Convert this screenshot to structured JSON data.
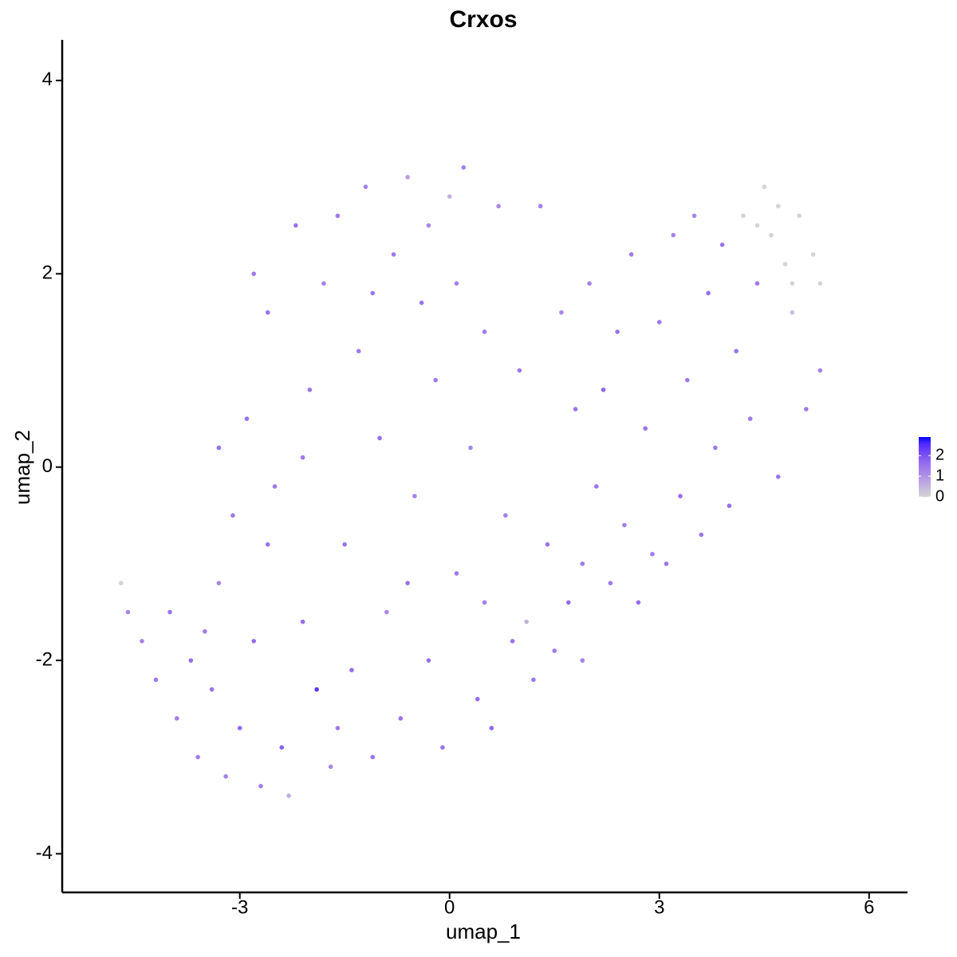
{
  "chart_data": {
    "type": "scatter",
    "title": "Crxos",
    "x_label": "umap_1",
    "y_label": "umap_2",
    "xlim": [
      -5.54,
      6.55
    ],
    "ylim": [
      -4.4,
      4.42
    ],
    "xticks": [
      -3,
      0,
      3,
      6
    ],
    "yticks": [
      -4,
      -2,
      0,
      2,
      4
    ],
    "color_scale": {
      "low": "#d3d3d3",
      "high": "#0000ff",
      "lim": [
        0,
        2.9
      ],
      "ticks": [
        0,
        1,
        2
      ]
    },
    "x": [
      -4.7,
      -4.6,
      -4.4,
      -4.2,
      -4.0,
      -3.9,
      -3.7,
      -3.6,
      -3.4,
      -3.3,
      -3.2,
      -3.1,
      -3.0,
      -2.9,
      -2.8,
      -2.7,
      -2.6,
      -2.5,
      -2.4,
      -2.3,
      -2.2,
      -2.1,
      -2.0,
      -1.9,
      -1.8,
      -1.7,
      -1.6,
      -1.5,
      -1.4,
      -1.3,
      -1.2,
      -1.1,
      -1.0,
      -0.9,
      -0.8,
      -0.7,
      -0.6,
      -0.5,
      -0.4,
      -0.3,
      -0.2,
      -0.1,
      0.0,
      0.1,
      0.2,
      0.3,
      0.4,
      0.5,
      0.6,
      0.7,
      0.8,
      0.9,
      1.0,
      1.1,
      1.2,
      1.3,
      1.4,
      1.5,
      1.6,
      1.7,
      1.8,
      1.9,
      2.0,
      2.1,
      2.2,
      2.3,
      2.4,
      2.5,
      2.6,
      2.7,
      2.8,
      3.0,
      3.1,
      3.2,
      3.3,
      3.4,
      3.5,
      3.6,
      3.7,
      3.8,
      3.9,
      4.0,
      4.1,
      4.2,
      4.3,
      4.4,
      4.5,
      4.6,
      4.7,
      4.8,
      4.9,
      5.0,
      5.1,
      5.2,
      5.3,
      5.3,
      4.9,
      4.7,
      4.4,
      -3.5,
      -2.6,
      -1.6,
      -0.6,
      0.5,
      -2.1,
      -1.1,
      0.1,
      -3.3,
      -2.8,
      -0.3,
      1.9,
      2.9
    ],
    "y": [
      -1.2,
      -1.5,
      -1.8,
      -2.2,
      -1.5,
      -2.6,
      -2.0,
      -3.0,
      -2.3,
      -1.2,
      -3.2,
      -0.5,
      -2.7,
      0.5,
      -1.8,
      -3.3,
      1.6,
      -0.2,
      -2.9,
      -3.4,
      2.5,
      -1.6,
      0.8,
      -2.3,
      1.9,
      -3.1,
      2.6,
      -0.8,
      -2.1,
      1.2,
      2.9,
      -3.0,
      0.3,
      -1.5,
      2.2,
      -2.6,
      3.0,
      -0.3,
      1.7,
      -2.0,
      0.9,
      -2.9,
      2.8,
      -1.1,
      3.1,
      0.2,
      -2.4,
      1.4,
      -2.7,
      2.7,
      -0.5,
      -1.8,
      1.0,
      -1.6,
      -2.2,
      2.7,
      -0.8,
      -1.9,
      1.6,
      -1.4,
      0.6,
      -1.0,
      1.9,
      -0.2,
      0.8,
      -1.2,
      1.4,
      -0.6,
      2.2,
      -1.4,
      0.4,
      1.5,
      -1.0,
      2.4,
      -0.3,
      0.9,
      2.6,
      -0.7,
      1.8,
      0.2,
      2.3,
      -0.4,
      1.2,
      2.6,
      0.5,
      1.9,
      2.9,
      2.4,
      -0.1,
      2.1,
      1.6,
      2.6,
      0.6,
      2.2,
      1.9,
      1.0,
      1.9,
      2.7,
      2.5,
      -1.7,
      -0.8,
      -2.7,
      -1.2,
      -1.4,
      0.1,
      1.8,
      1.9,
      0.2,
      2.0,
      2.5,
      -2.0,
      -0.9
    ],
    "values": [
      0,
      1.2,
      1.3,
      1.4,
      1.5,
      1.3,
      1.6,
      1.4,
      1.5,
      1.2,
      1.3,
      1.4,
      1.7,
      1.5,
      1.6,
      1.3,
      1.5,
      1.4,
      1.8,
      0.6,
      1.5,
      1.6,
      1.5,
      2.4,
      1.3,
      1.2,
      1.4,
      1.5,
      1.6,
      1.4,
      1.3,
      1.5,
      1.6,
      1.2,
      1.4,
      1.5,
      0.8,
      1.3,
      1.5,
      1.6,
      1.4,
      1.5,
      0.5,
      1.4,
      1.3,
      1.2,
      1.6,
      1.4,
      1.7,
      1.2,
      1.3,
      1.5,
      1.4,
      0.5,
      1.4,
      1.3,
      1.5,
      1.4,
      1.2,
      1.6,
      1.5,
      1.4,
      1.3,
      1.5,
      1.7,
      1.4,
      1.5,
      1.3,
      1.4,
      1.6,
      1.5,
      1.4,
      1.5,
      1.3,
      1.6,
      1.4,
      1.2,
      1.5,
      1.6,
      1.4,
      1.5,
      1.6,
      1.5,
      0,
      1.4,
      1.5,
      0,
      0,
      1.5,
      0,
      0.3,
      0,
      1.4,
      0,
      0,
      1.3,
      0,
      0,
      0,
      1.4,
      1.5,
      1.4,
      1.5,
      1.3,
      1.4,
      1.5,
      1.3,
      1.6,
      1.4,
      1.2,
      1.3,
      1.4
    ]
  }
}
